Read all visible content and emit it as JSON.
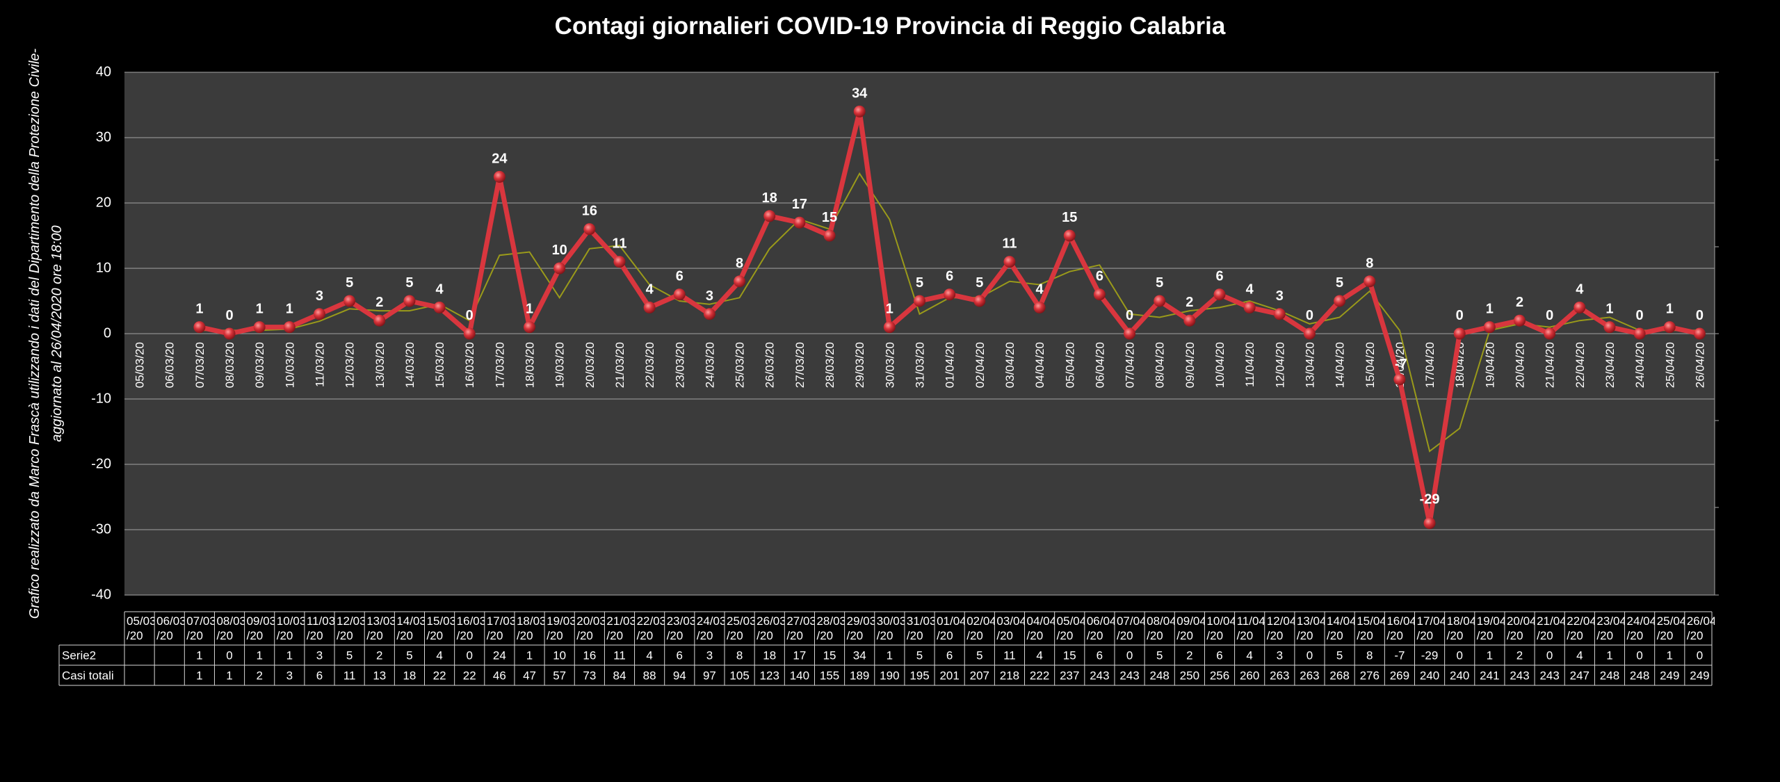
{
  "chart_data": {
    "type": "line",
    "title": "Contagi  giornalieri COVID-19 Provincia di Reggio Calabria",
    "side_note": [
      "Grafico  realizzato da Marco Frascà  utilizzando i dati del Dipartimento  della Protezione Civile-",
      "aggiornato al  26/04/2020 ore 18:00"
    ],
    "ylim": [
      -40,
      40
    ],
    "yticks": [
      40,
      30,
      20,
      10,
      0,
      -10,
      -20,
      -30,
      -40
    ],
    "grid": true,
    "dates": [
      "05/03/20",
      "06/03/20",
      "07/03/20",
      "08/03/20",
      "09/03/20",
      "10/03/20",
      "11/03/20",
      "12/03/20",
      "13/03/20",
      "14/03/20",
      "15/03/20",
      "16/03/20",
      "17/03/20",
      "18/03/20",
      "19/03/20",
      "20/03/20",
      "21/03/20",
      "22/03/20",
      "23/03/20",
      "24/03/20",
      "25/03/20",
      "26/03/20",
      "27/03/20",
      "28/03/20",
      "29/03/20",
      "30/03/20",
      "31/03/20",
      "01/04/20",
      "02/04/20",
      "03/04/20",
      "04/04/20",
      "05/04/20",
      "06/04/20",
      "07/04/20",
      "08/04/20",
      "09/04/20",
      "10/04/20",
      "11/04/20",
      "12/04/20",
      "13/04/20",
      "14/04/20",
      "15/04/20",
      "16/04/20",
      "17/04/20",
      "18/04/20",
      "19/04/20",
      "20/04/20",
      "21/04/20",
      "22/04/20",
      "23/04/20",
      "24/04/20",
      "25/04/20",
      "26/04/20"
    ],
    "series": [
      {
        "name": "Serie2",
        "values": [
          null,
          null,
          1,
          0,
          1,
          1,
          3,
          5,
          2,
          5,
          4,
          0,
          24,
          1,
          10,
          16,
          11,
          4,
          6,
          3,
          8,
          18,
          17,
          15,
          34,
          1,
          5,
          6,
          5,
          11,
          4,
          15,
          6,
          0,
          5,
          2,
          6,
          4,
          3,
          0,
          5,
          8,
          -7,
          -29,
          0,
          1,
          2,
          0,
          4,
          1,
          0,
          1,
          0
        ],
        "color": "#d9363e"
      }
    ],
    "moving_average": {
      "color": "#9a9a1a",
      "values": [
        null,
        null,
        0.5,
        0.5,
        0.5,
        0.7,
        1.9,
        3.8,
        3.5,
        3.5,
        4.5,
        2.0,
        12.0,
        12.5,
        5.5,
        13.0,
        13.5,
        7.5,
        5.0,
        4.5,
        5.5,
        13.0,
        17.5,
        16.0,
        24.5,
        17.5,
        3.0,
        5.5,
        5.5,
        8.0,
        7.5,
        9.5,
        10.5,
        3.0,
        2.5,
        3.5,
        4.0,
        5.0,
        3.5,
        1.5,
        2.5,
        6.5,
        0.5,
        -18.0,
        -14.5,
        0.5,
        1.5,
        1.0,
        2.0,
        2.5,
        0.5,
        0.5,
        0.5
      ]
    },
    "table": {
      "headers": [
        "05/03/20",
        "06/03/20",
        "07/03/20",
        "08/03/20",
        "09/03/20",
        "10/03/20",
        "11/03/20",
        "12/03/20",
        "13/03/20",
        "14/03/20",
        "15/03/20",
        "16/03/20",
        "17/03/20",
        "18/03/20",
        "19/03/20",
        "20/03/20",
        "21/03/20",
        "22/03/20",
        "23/03/20",
        "24/03/20",
        "25/03/20",
        "26/03/20",
        "27/03/20",
        "28/03/20",
        "29/03/20",
        "30/03/20",
        "31/03/20",
        "01/04/20",
        "02/04/20",
        "03/04/20",
        "04/04/20",
        "05/04/20",
        "06/04/20",
        "07/04/20",
        "08/04/20",
        "09/04/20",
        "10/04/20",
        "11/04/20",
        "12/04/20",
        "13/04/20",
        "14/04/20",
        "15/04/20",
        "16/04/20",
        "17/04/20",
        "18/04/20",
        "19/04/20",
        "20/04/20",
        "21/04/20",
        "22/04/20",
        "23/04/20",
        "24/04/20",
        "25/04/20",
        "26/04/20"
      ],
      "rows": [
        {
          "label": "Serie2",
          "values": [
            "",
            "",
            "1",
            "0",
            "1",
            "1",
            "3",
            "5",
            "2",
            "5",
            "4",
            "0",
            "24",
            "1",
            "10",
            "16",
            "11",
            "4",
            "6",
            "3",
            "8",
            "18",
            "17",
            "15",
            "34",
            "1",
            "5",
            "6",
            "5",
            "11",
            "4",
            "15",
            "6",
            "0",
            "5",
            "2",
            "6",
            "4",
            "3",
            "0",
            "5",
            "8",
            "-7",
            "-29",
            "0",
            "1",
            "2",
            "0",
            "4",
            "1",
            "0",
            "1",
            "0"
          ]
        },
        {
          "label": "Casi totali",
          "values": [
            "",
            "",
            "1",
            "1",
            "2",
            "3",
            "6",
            "11",
            "13",
            "18",
            "22",
            "22",
            "46",
            "47",
            "57",
            "73",
            "84",
            "88",
            "94",
            "97",
            "105",
            "123",
            "140",
            "155",
            "189",
            "190",
            "195",
            "201",
            "207",
            "218",
            "222",
            "237",
            "243",
            "243",
            "248",
            "250",
            "256",
            "260",
            "263",
            "263",
            "268",
            "276",
            "269",
            "240",
            "240",
            "241",
            "243",
            "243",
            "247",
            "248",
            "248",
            "249",
            "249"
          ]
        }
      ]
    }
  }
}
